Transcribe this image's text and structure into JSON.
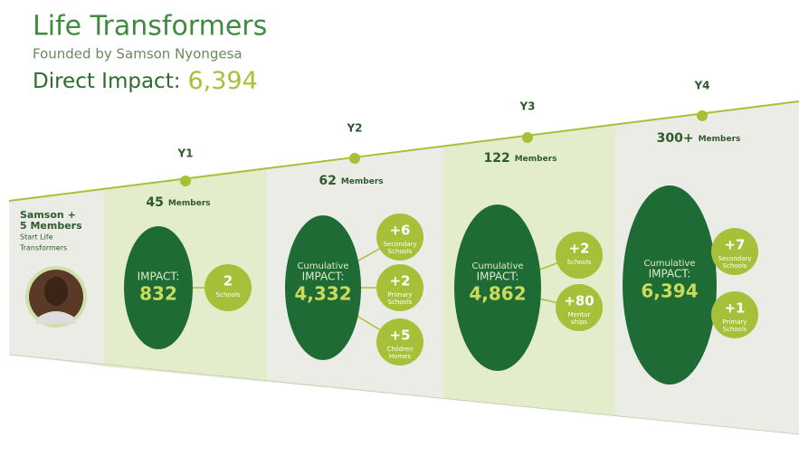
{
  "header": {
    "title": "Life Transformers",
    "subtitle": "Founded by Samson Nyongesa",
    "impact_label": "Direct Impact:",
    "impact_value": "6,394"
  },
  "start": {
    "lines": [
      "Samson +",
      "5 Members",
      "Start Life",
      "Transformers"
    ]
  },
  "years": [
    {
      "label": "Y1",
      "members": "45",
      "members_unit": "Members",
      "impact_label": [
        "IMPACT:"
      ],
      "impact": "832",
      "outcomes": [
        {
          "value": "2",
          "label": [
            "Schools"
          ]
        }
      ]
    },
    {
      "label": "Y2",
      "members": "62",
      "members_unit": "Members",
      "impact_label": [
        "Cumulative",
        "IMPACT:"
      ],
      "impact": "4,332",
      "outcomes": [
        {
          "value": "+6",
          "label": [
            "Secondary",
            "Schools"
          ]
        },
        {
          "value": "+2",
          "label": [
            "Primary",
            "Schools"
          ]
        },
        {
          "value": "+5",
          "label": [
            "Children",
            "Homes"
          ]
        }
      ]
    },
    {
      "label": "Y3",
      "members": "122",
      "members_unit": "Members",
      "impact_label": [
        "Cumulative",
        "IMPACT:"
      ],
      "impact": "4,862",
      "outcomes": [
        {
          "value": "+2",
          "label": [
            "Schools"
          ]
        },
        {
          "value": "+80",
          "label": [
            "Mentor",
            "ships"
          ]
        }
      ]
    },
    {
      "label": "Y4",
      "members": "300+",
      "members_unit": "Members",
      "impact_label": [
        "Cumulative",
        "IMPACT:"
      ],
      "impact": "6,394",
      "outcomes": [
        {
          "value": "+7",
          "label": [
            "Secondary",
            "Schools"
          ]
        },
        {
          "value": "+1",
          "label": [
            "Primary",
            "Schools"
          ]
        }
      ]
    }
  ]
}
